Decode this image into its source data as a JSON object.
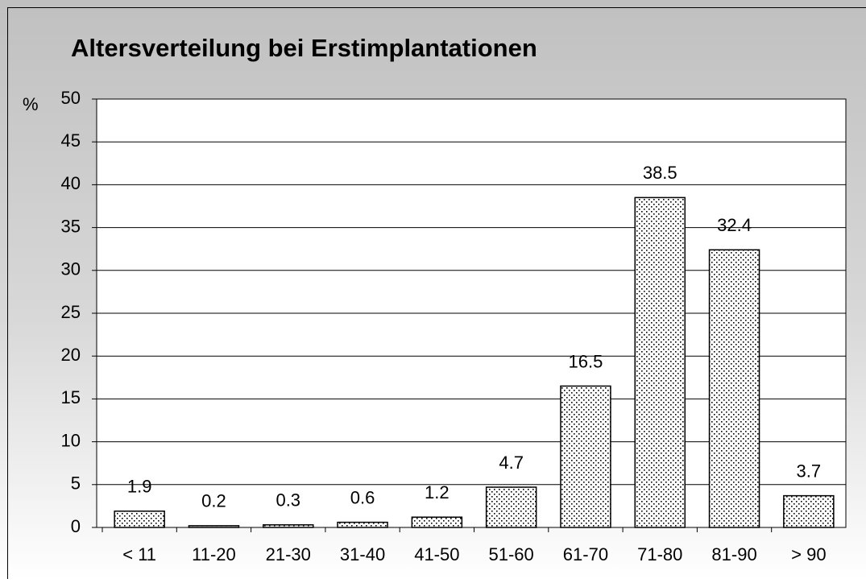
{
  "chart_data": {
    "type": "bar",
    "title": "Altersverteilung bei  Erstimplantationen",
    "ylabel": "%",
    "categories": [
      "< 11",
      "11-20",
      "21-30",
      "31-40",
      "41-50",
      "51-60",
      "61-70",
      "71-80",
      "81-90",
      "> 90"
    ],
    "values": [
      1.9,
      0.2,
      0.3,
      0.6,
      1.2,
      4.7,
      16.5,
      38.5,
      32.4,
      3.7
    ],
    "color": "#000000",
    "ylim": [
      0,
      50
    ],
    "yticks": [
      0,
      5,
      10,
      15,
      20,
      25,
      30,
      35,
      40,
      45,
      50
    ],
    "grid": true
  }
}
